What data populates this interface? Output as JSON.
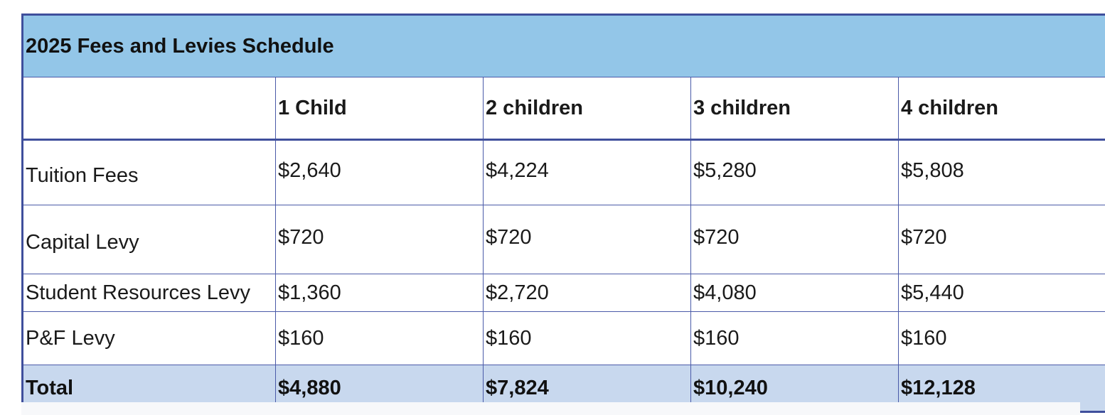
{
  "table": {
    "title": "2025 Fees and Levies Schedule",
    "columns": [
      "",
      "1 Child",
      "2 children",
      "3 children",
      "4 children"
    ],
    "rows": [
      {
        "label": "Tuition Fees",
        "values": [
          "$2,640",
          "$4,224",
          "$5,280",
          "$5,808"
        ]
      },
      {
        "label": "Capital Levy",
        "values": [
          "$720",
          "$720",
          "$720",
          "$720"
        ]
      },
      {
        "label": "Student Resources Levy",
        "values": [
          "$1,360",
          "$2,720",
          "$4,080",
          "$5,440"
        ]
      },
      {
        "label": "P&F Levy",
        "values": [
          "$160",
          "$160",
          "$160",
          "$160"
        ]
      }
    ],
    "total": {
      "label": "Total",
      "values": [
        "$4,880",
        "$7,824",
        "$10,240",
        "$12,128"
      ]
    }
  },
  "colors": {
    "title_bg": "#93c6e8",
    "total_bg": "#c8d8ee",
    "border": "#3f4f9c"
  }
}
